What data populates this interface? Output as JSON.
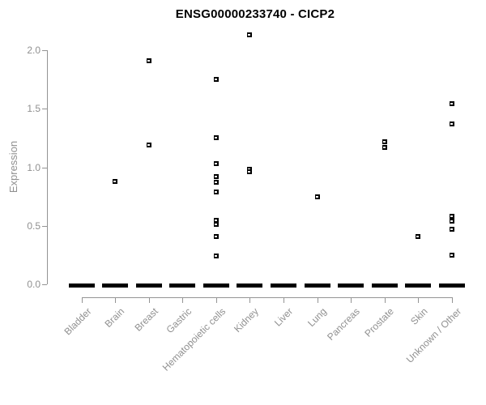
{
  "title": "ENSG00000233740 - CICP2",
  "colors": {
    "point": "#000000",
    "axis": "#949494",
    "tick_text": "#909090",
    "title_text": "#000000",
    "background": "#ffffff"
  },
  "chart_data": {
    "type": "scatter",
    "subtype": "strip-plot-per-category",
    "title": "ENSG00000233740 - CICP2",
    "xlabel": "",
    "ylabel": "Expression",
    "ylim": [
      0.0,
      2.15
    ],
    "yticks": [
      "0.0",
      "0.5",
      "1.0",
      "1.5",
      "2.0"
    ],
    "ytick_values": [
      0.0,
      0.5,
      1.0,
      1.5,
      2.0
    ],
    "grid": "off",
    "legend": "none",
    "marker": "small black square with white center notch",
    "categories": [
      "Bladder",
      "Brain",
      "Breast",
      "Gastric",
      "Hematopoietic cells",
      "Kidney",
      "Liver",
      "Lung",
      "Pancreas",
      "Prostate",
      "Skin",
      "Unknown / Other"
    ],
    "series": [
      {
        "category": "Bladder",
        "nonzero_values": []
      },
      {
        "category": "Brain",
        "nonzero_values": [
          0.88
        ]
      },
      {
        "category": "Breast",
        "nonzero_values": [
          1.91,
          1.19
        ]
      },
      {
        "category": "Gastric",
        "nonzero_values": []
      },
      {
        "category": "Hematopoietic cells",
        "nonzero_values": [
          1.75,
          1.25,
          1.03,
          0.92,
          0.87,
          0.79,
          0.55,
          0.51,
          0.41,
          0.24
        ]
      },
      {
        "category": "Kidney",
        "nonzero_values": [
          2.13,
          0.98,
          0.96
        ]
      },
      {
        "category": "Liver",
        "nonzero_values": []
      },
      {
        "category": "Lung",
        "nonzero_values": [
          0.75
        ]
      },
      {
        "category": "Pancreas",
        "nonzero_values": []
      },
      {
        "category": "Prostate",
        "nonzero_values": [
          1.22,
          1.17
        ]
      },
      {
        "category": "Skin",
        "nonzero_values": [
          0.41
        ]
      },
      {
        "category": "Unknown / Other",
        "nonzero_values": [
          1.54,
          1.37,
          0.58,
          0.54,
          0.47,
          0.25
        ]
      }
    ],
    "zero_cluster_note": "every category shows a dense cluster of overlapping points at expression 0.0, rendered as a thick black dash",
    "zero_dash_categories": [
      "Bladder",
      "Brain",
      "Breast",
      "Gastric",
      "Hematopoietic cells",
      "Kidney",
      "Liver",
      "Lung",
      "Pancreas",
      "Prostate",
      "Skin",
      "Unknown / Other"
    ]
  }
}
